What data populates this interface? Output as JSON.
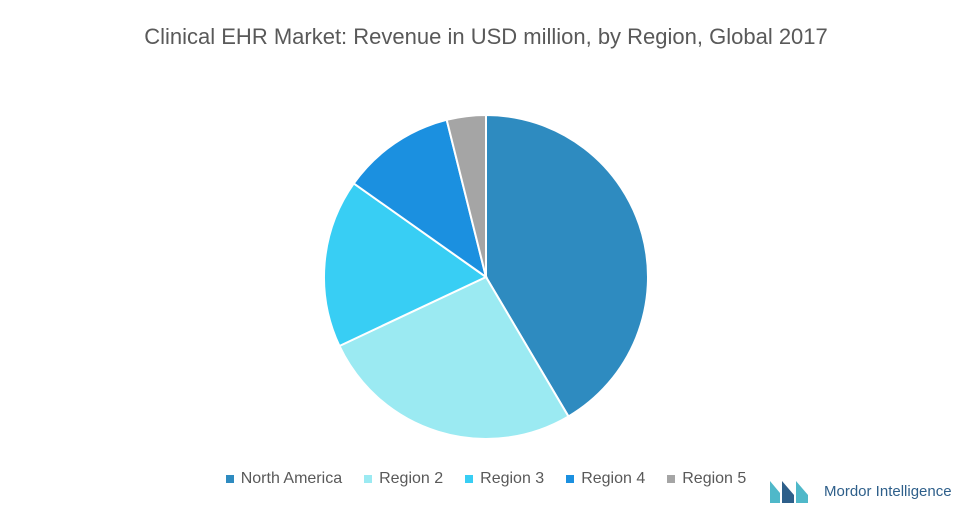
{
  "chart_data": {
    "type": "pie",
    "title": "Clinical EHR Market: Revenue in USD million, by Region, Global 2017",
    "categories": [
      "North America",
      "Region 2",
      "Region 3",
      "Region 4",
      "Region 5"
    ],
    "values": [
      41.5,
      26.5,
      16.8,
      11.3,
      3.9
    ],
    "colors": [
      "#2e8bc0",
      "#9beaf2",
      "#38cef4",
      "#1b90e0",
      "#a5a5a5"
    ]
  },
  "logo": "Mordor Intelligence"
}
